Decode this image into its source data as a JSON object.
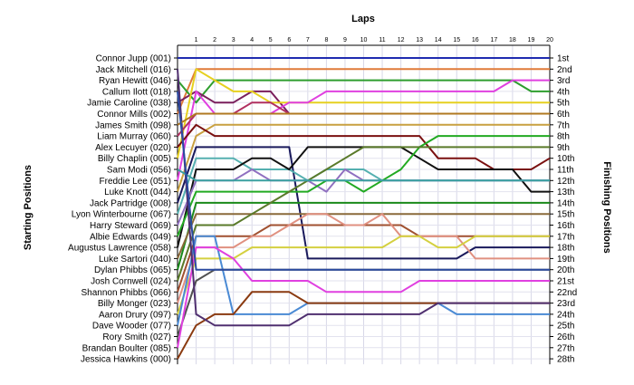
{
  "chart_data": {
    "type": "line",
    "title": "Laps",
    "ylabel_left": "Starting Positions",
    "ylabel_right": "Finishing Positions",
    "laps": [
      1,
      2,
      3,
      4,
      5,
      6,
      7,
      8,
      9,
      10,
      11,
      12,
      13,
      14,
      15,
      16,
      17,
      18,
      19,
      20
    ],
    "drivers": [
      "Connor Jupp (001)",
      "Jack Mitchell (016)",
      "Ryan Hewitt (046)",
      "Callum Ilott (018)",
      "Jamie Caroline (038)",
      "Connor Mills (002)",
      "James Smith (098)",
      "Liam Murray (060)",
      "Alex Lecuyer (020)",
      "Billy Chaplin (005)",
      "Sam Modi (056)",
      "Freddie Lee (051)",
      "Luke Knott (044)",
      "Jack Partridge (008)",
      "Lyon Winterbourne (067)",
      "Harry Steward (069)",
      "Albie Edwards (049)",
      "Augustus Lawrence (058)",
      "Luke Sartori (040)",
      "Dylan Phibbs (065)",
      "Josh Cornwell (024)",
      "Shannon Phibbs (066)",
      "Billy Monger (023)",
      "Aaron Drury (097)",
      "Dave Wooder (077)",
      "Rory Smith (027)",
      "Brandan Boulter (085)",
      "Jessica Hawkins (000)"
    ],
    "finishing_labels": [
      "1st",
      "2nd",
      "3rd",
      "4th",
      "5th",
      "6th",
      "7th",
      "8th",
      "9th",
      "10th",
      "11th",
      "12th",
      "13th",
      "14th",
      "15th",
      "16th",
      "17th",
      "18th",
      "19th",
      "20th",
      "21st",
      "22nd",
      "23rd",
      "24th",
      "25th",
      "26th",
      "27th",
      "28th"
    ],
    "series": [
      {
        "color": "#1f2bb0",
        "values": [
          1,
          1,
          1,
          1,
          1,
          1,
          1,
          1,
          1,
          1,
          1,
          1,
          1,
          1,
          1,
          1,
          1,
          1,
          1,
          1,
          1
        ]
      },
      {
        "color": "#e07b39",
        "values": [
          6,
          2,
          2,
          2,
          2,
          2,
          2,
          2,
          2,
          2,
          2,
          2,
          2,
          2,
          2,
          2,
          2,
          2,
          2,
          2,
          2
        ]
      },
      {
        "color": "#2e9e2e",
        "values": [
          3,
          5,
          3,
          3,
          3,
          3,
          3,
          3,
          3,
          3,
          3,
          3,
          3,
          3,
          3,
          3,
          3,
          3,
          3,
          4,
          4
        ]
      },
      {
        "color": "#7a1f5c",
        "values": [
          5,
          4,
          5,
          5,
          4,
          4,
          6,
          6,
          6,
          6,
          6,
          6,
          6,
          6,
          6,
          6,
          6,
          6,
          6,
          6,
          6
        ]
      },
      {
        "color": "#e6d020",
        "values": [
          10,
          2,
          3,
          4,
          4,
          5,
          5,
          5,
          5,
          5,
          5,
          5,
          5,
          5,
          5,
          5,
          5,
          5,
          5,
          5,
          5
        ]
      },
      {
        "color": "#e040e0",
        "values": [
          12,
          4,
          6,
          6,
          6,
          6,
          5,
          5,
          4,
          4,
          4,
          4,
          4,
          4,
          4,
          4,
          4,
          4,
          3,
          3,
          3
        ]
      },
      {
        "color": "#c8a040",
        "values": [
          13,
          8,
          7,
          7,
          7,
          7,
          7,
          7,
          7,
          7,
          7,
          7,
          7,
          7,
          7,
          7,
          7,
          7,
          7,
          7,
          7
        ]
      },
      {
        "color": "#7a1010",
        "values": [
          9,
          7,
          8,
          8,
          8,
          8,
          8,
          8,
          8,
          8,
          8,
          8,
          8,
          8,
          10,
          10,
          10,
          11,
          11,
          11,
          10
        ]
      },
      {
        "color": "#1a1a5c",
        "values": [
          14,
          9,
          9,
          9,
          9,
          9,
          9,
          19,
          19,
          19,
          19,
          19,
          19,
          19,
          19,
          19,
          18,
          18,
          18,
          18,
          18
        ]
      },
      {
        "color": "#55b0b0",
        "values": [
          15,
          10,
          10,
          10,
          11,
          11,
          11,
          12,
          11,
          11,
          11,
          12,
          12,
          12,
          12,
          12,
          12,
          12,
          12,
          12,
          12
        ]
      },
      {
        "color": "#111111",
        "values": [
          18,
          11,
          11,
          11,
          10,
          10,
          11,
          9,
          9,
          9,
          9,
          9,
          9,
          10,
          11,
          11,
          11,
          11,
          11,
          13,
          13
        ]
      },
      {
        "color": "#9070c0",
        "values": [
          16,
          12,
          12,
          12,
          11,
          12,
          12,
          12,
          13,
          11,
          12,
          12,
          12,
          12,
          12,
          12,
          12,
          12,
          12,
          12,
          12
        ]
      },
      {
        "color": "#22aa22",
        "values": [
          17,
          13,
          13,
          13,
          13,
          13,
          13,
          13,
          12,
          12,
          13,
          12,
          11,
          9,
          8,
          8,
          8,
          8,
          8,
          8,
          8
        ]
      },
      {
        "color": "#1a8a1a",
        "values": [
          20,
          14,
          14,
          14,
          14,
          14,
          14,
          14,
          14,
          14,
          14,
          14,
          14,
          14,
          14,
          14,
          14,
          14,
          14,
          14,
          14
        ]
      },
      {
        "color": "#8a6a3a",
        "values": [
          19,
          15,
          15,
          15,
          15,
          15,
          15,
          15,
          15,
          15,
          15,
          15,
          15,
          15,
          15,
          15,
          15,
          15,
          15,
          15,
          15
        ]
      },
      {
        "color": "#5a7a2a",
        "values": [
          21,
          16,
          16,
          16,
          15,
          14,
          13,
          12,
          11,
          10,
          9,
          9,
          9,
          9,
          9,
          9,
          9,
          9,
          9,
          9,
          9
        ]
      },
      {
        "color": "#a05030",
        "values": [
          22,
          17,
          17,
          17,
          17,
          16,
          16,
          16,
          16,
          16,
          16,
          16,
          16,
          17,
          17,
          17,
          17,
          17,
          17,
          17,
          17
        ]
      },
      {
        "color": "#e09080",
        "values": [
          23,
          18,
          18,
          18,
          17,
          17,
          16,
          15,
          15,
          16,
          16,
          15,
          17,
          17,
          17,
          17,
          19,
          19,
          19,
          19,
          19
        ]
      },
      {
        "color": "#d4d040",
        "values": [
          24,
          19,
          19,
          19,
          18,
          18,
          18,
          18,
          18,
          18,
          18,
          18,
          17,
          17,
          18,
          18,
          17,
          17,
          17,
          17,
          17
        ]
      },
      {
        "color": "#4a8ad4",
        "values": [
          25,
          17,
          17,
          24,
          24,
          24,
          24,
          23,
          23,
          23,
          23,
          23,
          23,
          23,
          23,
          24,
          24,
          24,
          24,
          24,
          24
        ]
      },
      {
        "color": "#505050",
        "values": [
          26,
          21,
          20,
          20,
          20,
          20,
          20,
          20,
          20,
          20,
          20,
          20,
          20,
          20,
          20,
          20,
          20,
          20,
          20,
          20,
          20
        ]
      },
      {
        "color": "#e040e0",
        "values": [
          27,
          18,
          18,
          19,
          21,
          21,
          21,
          21,
          22,
          22,
          22,
          22,
          22,
          21,
          21,
          21,
          21,
          21,
          21,
          21,
          21
        ]
      },
      {
        "color": "#8a3a10",
        "values": [
          28,
          25,
          24,
          24,
          22,
          22,
          22,
          23,
          23,
          23,
          23,
          23,
          23,
          23,
          23,
          23,
          23,
          23,
          23,
          23,
          23
        ]
      },
      {
        "color": "#503070",
        "values": [
          2,
          24,
          25,
          25,
          25,
          25,
          25,
          24,
          24,
          24,
          24,
          24,
          24,
          24,
          23,
          23,
          23,
          23,
          23,
          23,
          23
        ]
      },
      {
        "color": "#b03060",
        "values": [
          8,
          6,
          6,
          6,
          5,
          5,
          6,
          6,
          6,
          6,
          6,
          6,
          6,
          6,
          6,
          6,
          6,
          6,
          6,
          6,
          6
        ]
      },
      {
        "color": "#3aa0a0",
        "values": [
          11,
          12,
          12,
          12,
          12,
          12,
          12,
          12,
          12,
          12,
          12,
          12,
          12,
          12,
          12,
          12,
          12,
          12,
          12,
          12,
          12
        ]
      },
      {
        "color": "#b07820",
        "values": [
          7,
          6,
          6,
          6,
          6,
          6,
          6,
          6,
          6,
          6,
          6,
          6,
          6,
          6,
          6,
          6,
          6,
          6,
          6,
          6,
          6
        ]
      },
      {
        "color": "#2a4aa0",
        "values": [
          4,
          20,
          20,
          20,
          20,
          20,
          20,
          20,
          20,
          20,
          20,
          20,
          20,
          20,
          20,
          20,
          20,
          20,
          20,
          20,
          20
        ]
      }
    ]
  }
}
